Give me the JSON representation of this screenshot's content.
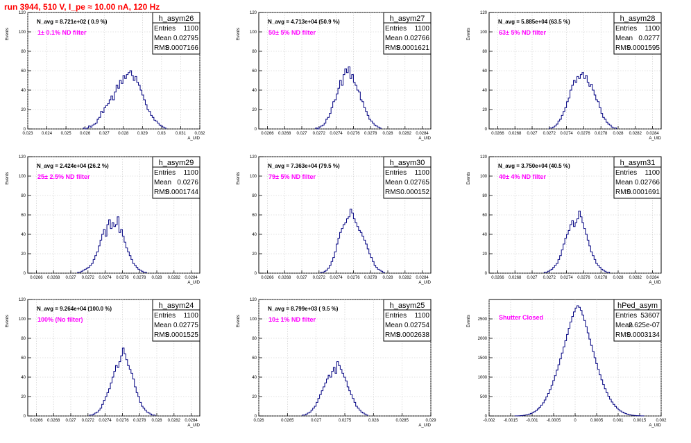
{
  "page": {
    "run_title": "run 3944,   510 V, I_pe ≈ 10.00 nA, 120 Hz",
    "ylabel": "Events",
    "xlabel": "A_UID",
    "stats_labels": [
      "Entries",
      "Mean",
      "RMS"
    ]
  },
  "colors": {
    "histogram": "#000080",
    "filter_label": "#ff00ff",
    "run_title": "#ff0000"
  },
  "chart_data": [
    {
      "type": "histogram",
      "name": "h_asym26",
      "navg": "N_avg = 8.721e+02 ( 0.9 %)",
      "filter": "1± 0.1% ND filter",
      "entries": "1100",
      "mean": "0.02795",
      "rms": "0.0007166",
      "xlim": [
        0.023,
        0.032
      ],
      "ylim": [
        0,
        120
      ],
      "xticks": [
        0.023,
        0.024,
        0.025,
        0.026,
        0.027,
        0.028,
        0.029,
        0.03,
        0.031,
        0.032
      ],
      "xticklabels": [
        "0.023",
        "0.024",
        "0.025",
        "0.026",
        "0.027",
        "0.028",
        "0.029",
        "0.03",
        "0.031",
        "0.032"
      ],
      "yticks": [
        0,
        20,
        40,
        60,
        80,
        100,
        120
      ],
      "bin_width": 9e-05,
      "bin_start": 0.02591,
      "counts": [
        1,
        0,
        1,
        3,
        2,
        4,
        5,
        6,
        10,
        12,
        18,
        17,
        22,
        24,
        26,
        30,
        34,
        30,
        38,
        45,
        42,
        50,
        47,
        55,
        52,
        56,
        58,
        60,
        55,
        50,
        54,
        48,
        45,
        40,
        35,
        30,
        25,
        20,
        18,
        14,
        12,
        9,
        8,
        6,
        4,
        3,
        2,
        1
      ]
    },
    {
      "type": "histogram",
      "name": "h_asym27",
      "navg": "N_avg = 4.713e+04 (50.9 %)",
      "filter": "50± 5% ND filter",
      "entries": "1100",
      "mean": "0.02766",
      "rms": "0.0001621",
      "xlim": [
        0.0265,
        0.0285
      ],
      "ylim": [
        0,
        120
      ],
      "xticks": [
        0.0266,
        0.0268,
        0.027,
        0.0272,
        0.0274,
        0.0276,
        0.0278,
        0.028,
        0.0282,
        0.0284
      ],
      "xticklabels": [
        "0.0266",
        "0.0268",
        "0.027",
        "0.0272",
        "0.0274",
        "0.0276",
        "0.0278",
        "0.028",
        "0.0282",
        "0.0284"
      ],
      "yticks": [
        0,
        20,
        40,
        60,
        80,
        100,
        120
      ],
      "bin_width": 2e-05,
      "bin_start": 0.02716,
      "counts": [
        1,
        0,
        2,
        3,
        4,
        6,
        10,
        12,
        16,
        22,
        28,
        30,
        36,
        42,
        50,
        45,
        56,
        62,
        58,
        64,
        52,
        56,
        48,
        45,
        40,
        38,
        30,
        28,
        22,
        18,
        14,
        10,
        8,
        6,
        4,
        3,
        2,
        1
      ]
    },
    {
      "type": "histogram",
      "name": "h_asym28",
      "navg": "N_avg = 5.885e+04 (63.5 %)",
      "filter": "63± 5% ND filter",
      "entries": "1100",
      "mean": "0.0277",
      "rms": "0.0001595",
      "xlim": [
        0.0265,
        0.0285
      ],
      "ylim": [
        0,
        120
      ],
      "xticks": [
        0.0266,
        0.0268,
        0.027,
        0.0272,
        0.0274,
        0.0276,
        0.0278,
        0.028,
        0.0282,
        0.0284
      ],
      "xticklabels": [
        "0.0266",
        "0.0268",
        "0.027",
        "0.0272",
        "0.0274",
        "0.0276",
        "0.0278",
        "0.028",
        "0.0282",
        "0.0284"
      ],
      "yticks": [
        0,
        20,
        40,
        60,
        80,
        100,
        120
      ],
      "bin_width": 2e-05,
      "bin_start": 0.0272,
      "counts": [
        1,
        1,
        2,
        3,
        5,
        8,
        10,
        14,
        18,
        22,
        28,
        32,
        40,
        45,
        50,
        48,
        54,
        52,
        56,
        58,
        52,
        55,
        48,
        44,
        46,
        40,
        35,
        30,
        28,
        22,
        16,
        12,
        10,
        7,
        5,
        4,
        2,
        1,
        1
      ]
    },
    {
      "type": "histogram",
      "name": "h_asym29",
      "navg": "N_avg = 2.424e+04 (26.2 %)",
      "filter": "25± 2.5% ND filter",
      "entries": "1100",
      "mean": "0.0276",
      "rms": "0.0001744",
      "xlim": [
        0.0265,
        0.0285
      ],
      "ylim": [
        0,
        120
      ],
      "xticks": [
        0.0266,
        0.0268,
        0.027,
        0.0272,
        0.0274,
        0.0276,
        0.0278,
        0.028,
        0.0282,
        0.0284
      ],
      "xticklabels": [
        "0.0266",
        "0.0268",
        "0.027",
        "0.0272",
        "0.0274",
        "0.0276",
        "0.0278",
        "0.028",
        "0.0282",
        "0.0284"
      ],
      "yticks": [
        0,
        20,
        40,
        60,
        80,
        100,
        120
      ],
      "bin_width": 2e-05,
      "bin_start": 0.02708,
      "counts": [
        1,
        1,
        2,
        3,
        4,
        5,
        6,
        8,
        10,
        14,
        18,
        22,
        28,
        34,
        40,
        45,
        38,
        50,
        55,
        46,
        52,
        48,
        50,
        58,
        42,
        45,
        38,
        32,
        26,
        22,
        18,
        14,
        10,
        8,
        6,
        4,
        3,
        2,
        1,
        1
      ]
    },
    {
      "type": "histogram",
      "name": "h_asym30",
      "navg": "N_avg = 7.363e+04 (79.5 %)",
      "filter": "79± 5% ND filter",
      "entries": "1100",
      "mean": "0.02765",
      "rms": "0.000152",
      "xlim": [
        0.0265,
        0.0285
      ],
      "ylim": [
        0,
        120
      ],
      "xticks": [
        0.0266,
        0.0268,
        0.027,
        0.0272,
        0.0274,
        0.0276,
        0.0278,
        0.028,
        0.0282,
        0.0284
      ],
      "xticklabels": [
        "0.0266",
        "0.0268",
        "0.027",
        "0.0272",
        "0.0274",
        "0.0276",
        "0.0278",
        "0.028",
        "0.0282",
        "0.0284"
      ],
      "yticks": [
        0,
        20,
        40,
        60,
        80,
        100,
        120
      ],
      "bin_width": 2e-05,
      "bin_start": 0.02722,
      "counts": [
        1,
        1,
        2,
        3,
        5,
        8,
        12,
        16,
        22,
        30,
        36,
        42,
        46,
        50,
        52,
        56,
        58,
        66,
        62,
        56,
        52,
        48,
        44,
        42,
        38,
        34,
        30,
        25,
        20,
        16,
        12,
        8,
        6,
        4,
        3,
        2,
        1
      ]
    },
    {
      "type": "histogram",
      "name": "h_asym31",
      "navg": "N_avg = 3.750e+04 (40.5 %)",
      "filter": "40± 4% ND filter",
      "entries": "1100",
      "mean": "0.02766",
      "rms": "0.0001691",
      "xlim": [
        0.0265,
        0.0285
      ],
      "ylim": [
        0,
        120
      ],
      "xticks": [
        0.0266,
        0.0268,
        0.027,
        0.0272,
        0.0274,
        0.0276,
        0.0278,
        0.028,
        0.0282,
        0.0284
      ],
      "xticklabels": [
        "0.0266",
        "0.0268",
        "0.027",
        "0.0272",
        "0.0274",
        "0.0276",
        "0.0278",
        "0.028",
        "0.0282",
        "0.0284"
      ],
      "yticks": [
        0,
        20,
        40,
        60,
        80,
        100,
        120
      ],
      "bin_width": 2e-05,
      "bin_start": 0.02714,
      "counts": [
        1,
        1,
        2,
        3,
        4,
        6,
        8,
        10,
        14,
        18,
        24,
        30,
        36,
        40,
        44,
        50,
        54,
        48,
        52,
        56,
        64,
        58,
        52,
        46,
        40,
        34,
        28,
        22,
        18,
        14,
        10,
        8,
        6,
        4,
        3,
        2,
        1,
        1
      ]
    },
    {
      "type": "histogram",
      "name": "h_asym24",
      "navg": "N_avg = 9.264e+04 (100.0 %)",
      "filter": "100% (No filter)",
      "entries": "1100",
      "mean": "0.02775",
      "rms": "0.0001525",
      "xlim": [
        0.0265,
        0.0285
      ],
      "ylim": [
        0,
        120
      ],
      "xticks": [
        0.0266,
        0.0268,
        0.027,
        0.0272,
        0.0274,
        0.0276,
        0.0278,
        0.028,
        0.0282,
        0.0284
      ],
      "xticklabels": [
        "0.0266",
        "0.0268",
        "0.027",
        "0.0272",
        "0.0274",
        "0.0276",
        "0.0278",
        "0.028",
        "0.0282",
        "0.0284"
      ],
      "yticks": [
        0,
        20,
        40,
        60,
        80,
        100,
        120
      ],
      "bin_width": 2e-05,
      "bin_start": 0.02722,
      "counts": [
        1,
        1,
        2,
        3,
        4,
        6,
        8,
        12,
        16,
        20,
        24,
        28,
        34,
        40,
        46,
        52,
        50,
        56,
        62,
        70,
        64,
        58,
        52,
        48,
        44,
        38,
        30,
        24,
        20,
        14,
        10,
        8,
        6,
        4,
        3,
        2,
        1,
        1
      ]
    },
    {
      "type": "histogram",
      "name": "h_asym25",
      "navg": "N_avg = 8.799e+03 ( 9.5 %)",
      "filter": "10± 1% ND filter",
      "entries": "1100",
      "mean": "0.02754",
      "rms": "0.0002638",
      "xlim": [
        0.026,
        0.029
      ],
      "ylim": [
        0,
        120
      ],
      "xticks": [
        0.026,
        0.0265,
        0.027,
        0.0275,
        0.028,
        0.0285,
        0.029
      ],
      "xticklabels": [
        "0.026",
        "0.0265",
        "0.027",
        "0.0275",
        "0.028",
        "0.0285",
        "0.029"
      ],
      "yticks": [
        0,
        20,
        40,
        60,
        80,
        100,
        120
      ],
      "bin_width": 3e-05,
      "bin_start": 0.02676,
      "counts": [
        1,
        1,
        2,
        3,
        4,
        6,
        8,
        10,
        14,
        18,
        22,
        26,
        30,
        34,
        38,
        42,
        40,
        46,
        50,
        44,
        56,
        52,
        48,
        44,
        40,
        36,
        30,
        26,
        22,
        18,
        14,
        10,
        8,
        6,
        4,
        3,
        2,
        1
      ]
    },
    {
      "type": "histogram",
      "name": "hPed_asym",
      "navg": "",
      "filter": "Shutter Closed",
      "entries": "53607",
      "mean": "2.625e-07",
      "rms": "0.0003134",
      "xlim": [
        -0.002,
        0.002
      ],
      "ylim": [
        0,
        3000
      ],
      "xticks": [
        -0.002,
        -0.0015,
        -0.001,
        -0.0005,
        0,
        0.0005,
        0.001,
        0.0015,
        0.002
      ],
      "xticklabels": [
        "-0.002",
        "-0.0015",
        "-0.001",
        "-0.0005",
        "0",
        "0.0005",
        "0.001",
        "0.0015",
        "0.002"
      ],
      "yticks": [
        0,
        500,
        1000,
        1500,
        2000,
        2500
      ],
      "bin_width": 4e-05,
      "bin_start": -0.0014,
      "counts": [
        2,
        3,
        5,
        8,
        12,
        18,
        26,
        36,
        48,
        64,
        84,
        110,
        140,
        180,
        226,
        280,
        340,
        410,
        490,
        580,
        680,
        790,
        910,
        1040,
        1180,
        1320,
        1470,
        1620,
        1780,
        1940,
        2100,
        2260,
        2420,
        2560,
        2680,
        2780,
        2840,
        2800,
        2720,
        2600,
        2460,
        2300,
        2140,
        1980,
        1820,
        1660,
        1500,
        1350,
        1200,
        1060,
        930,
        810,
        700,
        600,
        510,
        430,
        360,
        300,
        245,
        200,
        160,
        128,
        100,
        78,
        60,
        46,
        34,
        25,
        18,
        13,
        9,
        6,
        4,
        3,
        2
      ]
    }
  ]
}
